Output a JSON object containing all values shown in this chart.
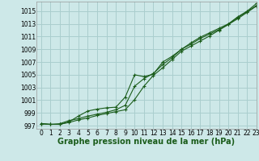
{
  "title": "Graphe pression niveau de la mer (hPa)",
  "bg_color": "#cde8e8",
  "grid_color": "#aacece",
  "line_color": "#1a5c1a",
  "xlim": [
    -0.5,
    23
  ],
  "ylim": [
    996.5,
    1016.5
  ],
  "yticks": [
    997,
    999,
    1001,
    1003,
    1005,
    1007,
    1009,
    1011,
    1013,
    1015
  ],
  "xticks": [
    0,
    1,
    2,
    3,
    4,
    5,
    6,
    7,
    8,
    9,
    10,
    11,
    12,
    13,
    14,
    15,
    16,
    17,
    18,
    19,
    20,
    21,
    22,
    23
  ],
  "series": [
    [
      997.3,
      997.2,
      997.2,
      997.5,
      997.9,
      998.2,
      998.6,
      998.9,
      999.2,
      999.5,
      1001.1,
      1003.2,
      1004.9,
      1006.1,
      1007.4,
      1008.7,
      1009.5,
      1010.3,
      1011.1,
      1012.0,
      1012.9,
      1014.0,
      1014.9,
      1015.9
    ],
    [
      997.3,
      997.2,
      997.2,
      997.6,
      998.5,
      999.3,
      999.6,
      999.8,
      999.9,
      1001.5,
      1005.0,
      1004.7,
      1005.1,
      1007.0,
      1007.9,
      1009.0,
      1010.0,
      1010.9,
      1011.6,
      1012.3,
      1013.0,
      1014.1,
      1015.0,
      1016.2
    ],
    [
      997.3,
      997.2,
      997.3,
      997.8,
      998.1,
      998.5,
      998.8,
      999.1,
      999.5,
      1000.2,
      1003.2,
      1004.4,
      1005.2,
      1006.6,
      1007.7,
      1009.0,
      1009.8,
      1010.7,
      1011.4,
      1012.1,
      1012.9,
      1013.8,
      1014.8,
      1015.8
    ]
  ],
  "tick_fontsize": 5.5,
  "xlabel_fontsize": 7.0
}
